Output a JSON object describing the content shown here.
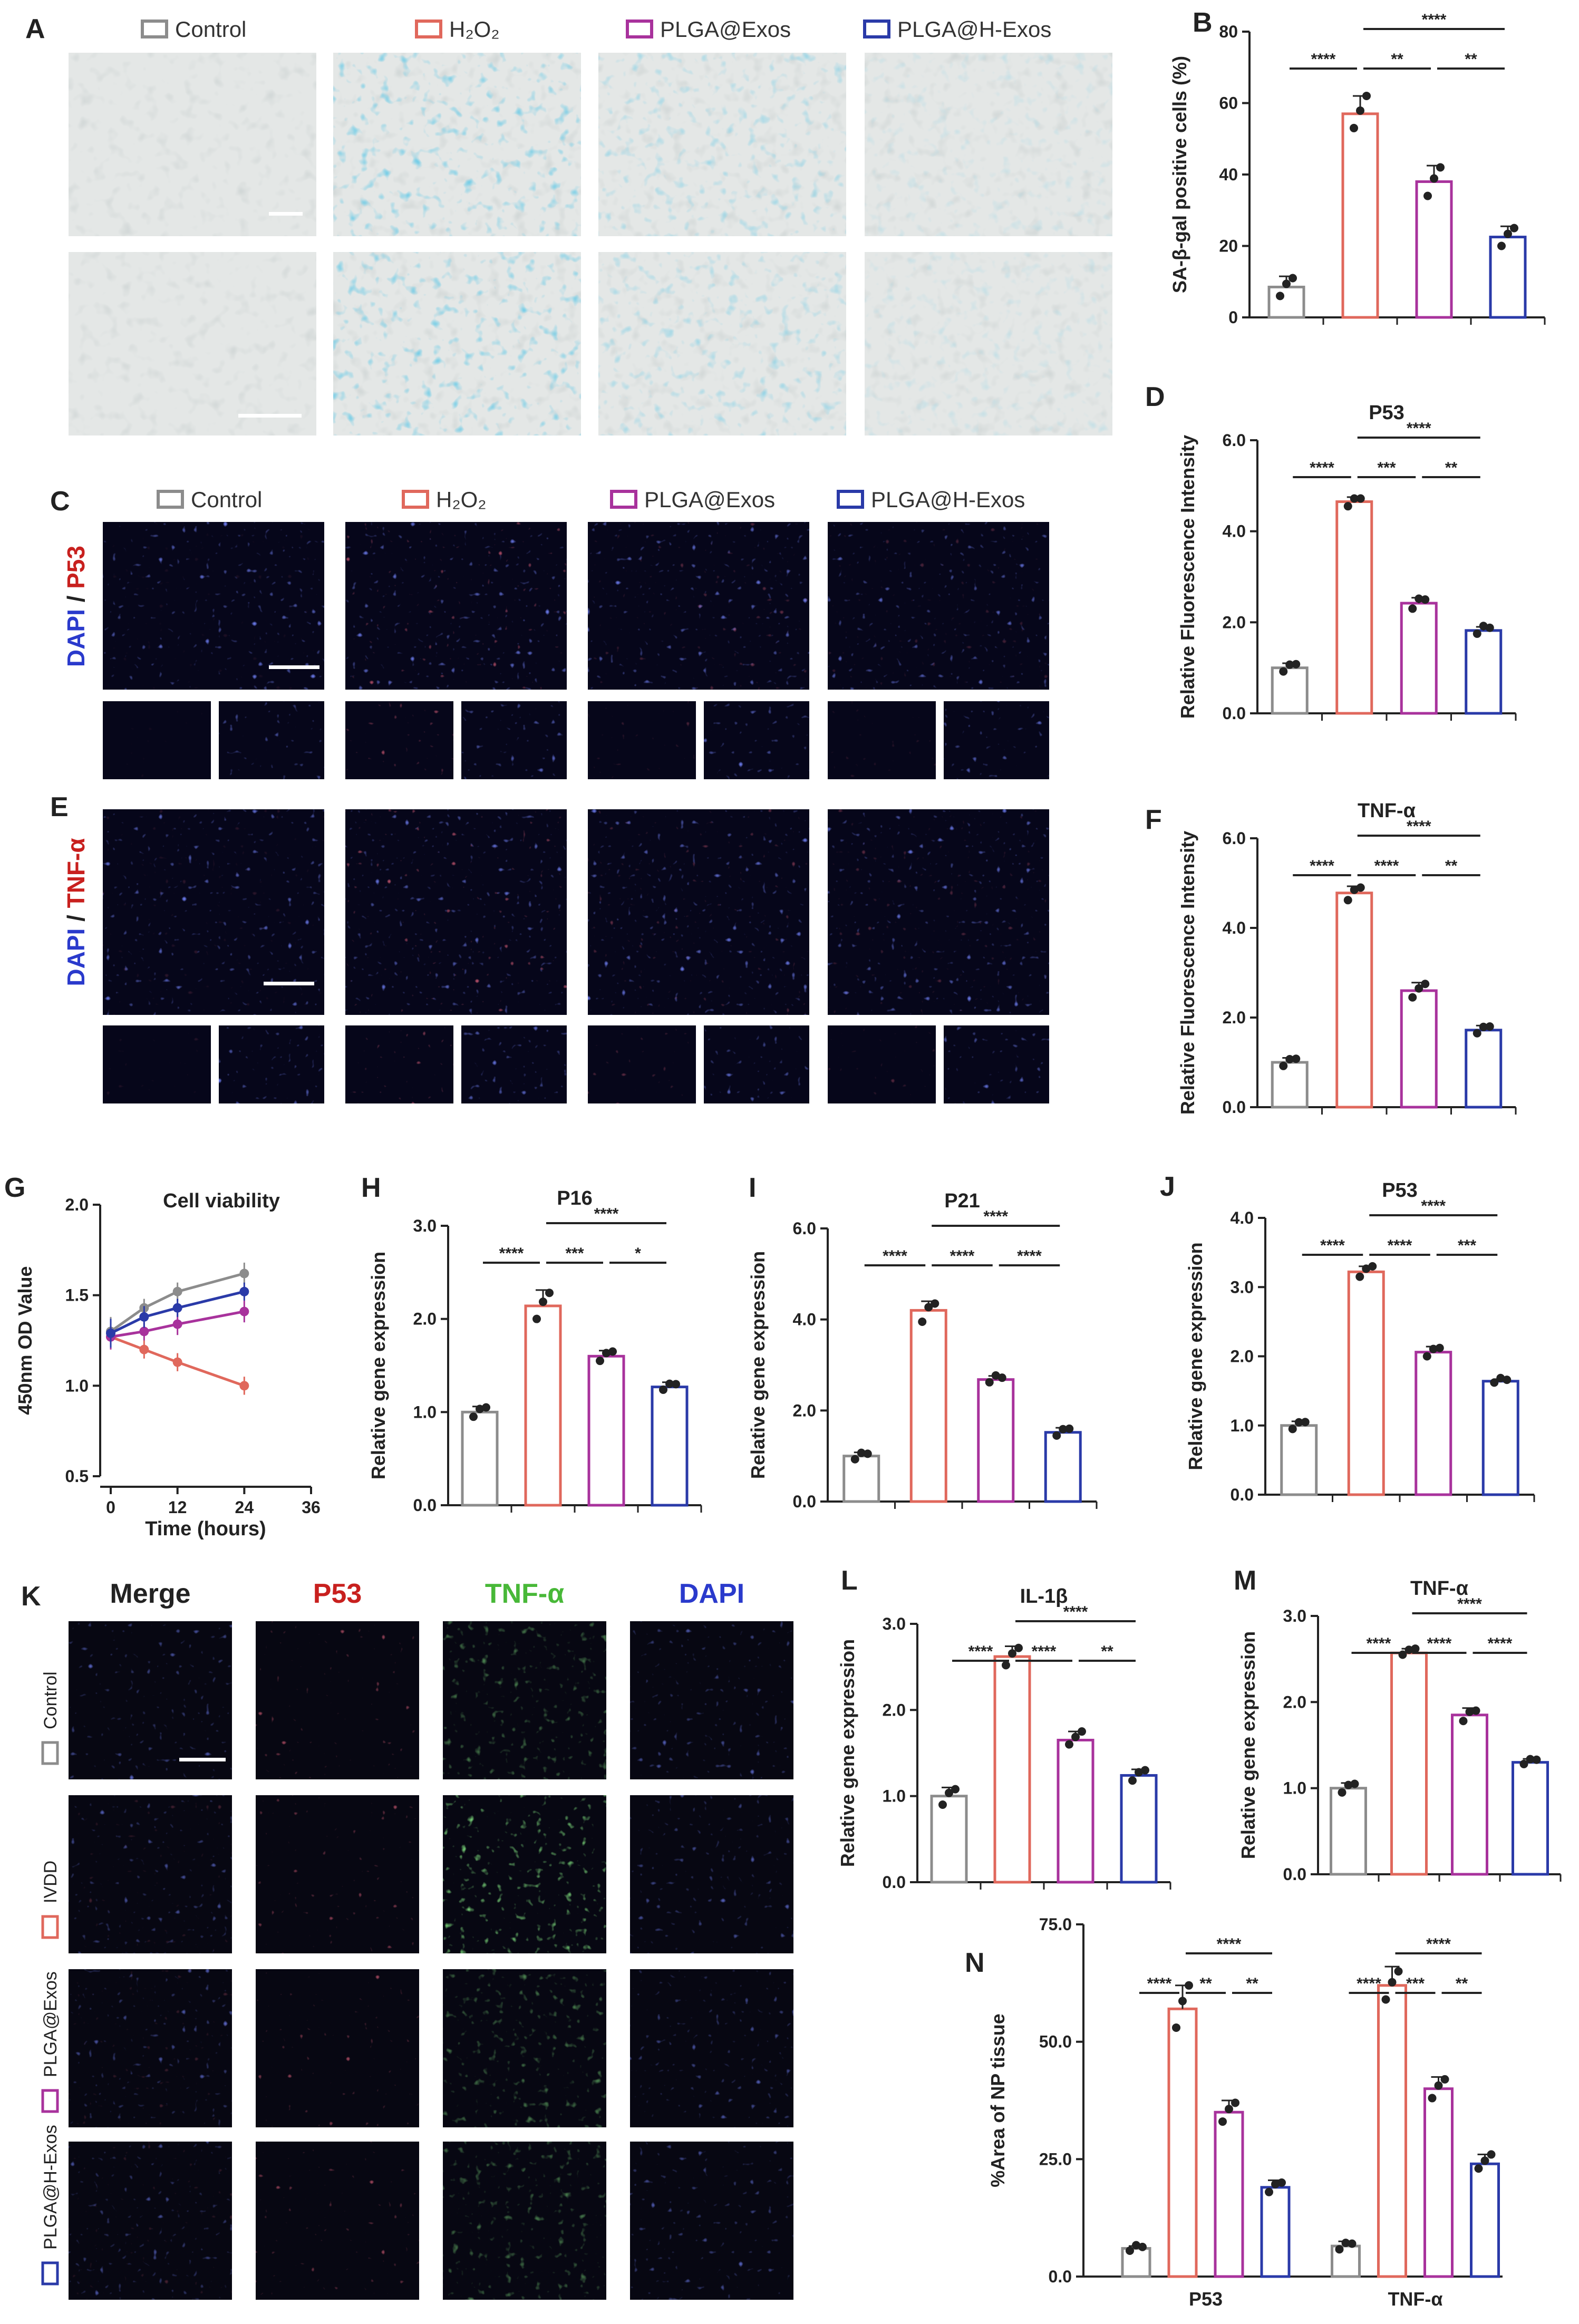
{
  "colors": {
    "Control": "#8c8c8c",
    "H2O2": "#e0685c",
    "PLGA@Exos": "#a8329c",
    "PLGA@H-Exos": "#2a3aa8",
    "dapi": "#2a3acc",
    "p53_text": "#c8201e",
    "tnf_text": "#48b838"
  },
  "panel_labels": {
    "A": "A",
    "B": "B",
    "C": "C",
    "D": "D",
    "E": "E",
    "F": "F",
    "G": "G",
    "H": "H",
    "I": "I",
    "J": "J",
    "K": "K",
    "L": "L",
    "M": "M",
    "N": "N"
  },
  "legend_A": [
    {
      "name": "Control",
      "color_key": "Control"
    },
    {
      "name": "H₂O₂",
      "color_key": "H2O2"
    },
    {
      "name": "PLGA@Exos",
      "color_key": "PLGA@Exos"
    },
    {
      "name": "PLGA@H-Exos",
      "color_key": "PLGA@H-Exos"
    }
  ],
  "legend_C": [
    {
      "name": "Control",
      "color_key": "Control"
    },
    {
      "name": "H₂O₂",
      "color_key": "H2O2"
    },
    {
      "name": "PLGA@Exos",
      "color_key": "PLGA@Exos"
    },
    {
      "name": "PLGA@H-Exos",
      "color_key": "PLGA@H-Exos"
    }
  ],
  "side_labels": {
    "C": {
      "dapi": "DAPI",
      "slash": " / ",
      "marker": "P53"
    },
    "E": {
      "dapi": "DAPI",
      "slash": " / ",
      "marker": "TNF-α"
    }
  },
  "k_headers": [
    "Merge",
    "P53",
    "TNF-α",
    "DAPI"
  ],
  "k_rows": [
    "Control",
    "IVDD",
    "PLGA@Exos",
    "PLGA@H-Exos"
  ],
  "chart_data": [
    {
      "id": "B",
      "type": "bar",
      "title": "",
      "xlabel": "",
      "ylabel": "SA-β-gal positive cells (%)",
      "ylim": [
        0,
        80
      ],
      "yticks": [
        "0",
        "20",
        "40",
        "60",
        "80"
      ],
      "categories": [
        "Control",
        "H2O2",
        "PLGA@Exos",
        "PLGA@H-Exos"
      ],
      "values": [
        8.5,
        57,
        38,
        22.5
      ],
      "errors": [
        3,
        5,
        4.5,
        3
      ],
      "points": [
        [
          6,
          8.5,
          11
        ],
        [
          53,
          57,
          62
        ],
        [
          34,
          38,
          42
        ],
        [
          20,
          22.5,
          25
        ]
      ],
      "sig": [
        {
          "a": 0,
          "b": 1,
          "t": "****",
          "lvl": 1
        },
        {
          "a": 1,
          "b": 2,
          "t": "**",
          "lvl": 1
        },
        {
          "a": 2,
          "b": 3,
          "t": "**",
          "lvl": 1
        },
        {
          "a": 1,
          "b": 3,
          "t": "****",
          "lvl": 2
        }
      ]
    },
    {
      "id": "D",
      "type": "bar",
      "title": "P53",
      "xlabel": "",
      "ylabel": "Relative Fluorescence Intensity",
      "ylim": [
        0,
        6
      ],
      "yticks": [
        "0.0",
        "2.0",
        "4.0",
        "6.0"
      ],
      "categories": [
        "Control",
        "H2O2",
        "PLGA@Exos",
        "PLGA@H-Exos"
      ],
      "values": [
        1.0,
        4.65,
        2.42,
        1.82
      ],
      "errors": [
        0.1,
        0.1,
        0.12,
        0.08
      ],
      "points": [
        [
          0.92,
          1.0,
          1.08
        ],
        [
          4.55,
          4.65,
          4.72
        ],
        [
          2.3,
          2.45,
          2.5
        ],
        [
          1.75,
          1.85,
          1.88
        ]
      ],
      "sig": [
        {
          "a": 0,
          "b": 1,
          "t": "****",
          "lvl": 1
        },
        {
          "a": 1,
          "b": 2,
          "t": "***",
          "lvl": 1
        },
        {
          "a": 2,
          "b": 3,
          "t": "**",
          "lvl": 1
        },
        {
          "a": 1,
          "b": 3,
          "t": "****",
          "lvl": 2
        }
      ]
    },
    {
      "id": "F",
      "type": "bar",
      "title": "TNF-α",
      "xlabel": "",
      "ylabel": "Relative Fluorescence Intensity",
      "ylim": [
        0,
        6
      ],
      "yticks": [
        "0.0",
        "2.0",
        "4.0",
        "6.0"
      ],
      "categories": [
        "Control",
        "H2O2",
        "PLGA@Exos",
        "PLGA@H-Exos"
      ],
      "values": [
        1.0,
        4.78,
        2.6,
        1.72
      ],
      "errors": [
        0.1,
        0.15,
        0.18,
        0.1
      ],
      "points": [
        [
          0.92,
          1.0,
          1.08
        ],
        [
          4.62,
          4.78,
          4.9
        ],
        [
          2.45,
          2.58,
          2.75
        ],
        [
          1.65,
          1.72,
          1.8
        ]
      ],
      "sig": [
        {
          "a": 0,
          "b": 1,
          "t": "****",
          "lvl": 1
        },
        {
          "a": 1,
          "b": 2,
          "t": "****",
          "lvl": 1
        },
        {
          "a": 2,
          "b": 3,
          "t": "**",
          "lvl": 1
        },
        {
          "a": 1,
          "b": 3,
          "t": "****",
          "lvl": 2
        }
      ]
    },
    {
      "id": "G",
      "type": "line",
      "title": "Cell viability",
      "xlabel": "Time (hours)",
      "ylabel": "450nm OD Value",
      "xlim": [
        0,
        36
      ],
      "xticks": [
        "0",
        "12",
        "24",
        "36"
      ],
      "ylim": [
        0.5,
        2.0
      ],
      "yticks": [
        "0.5",
        "1.0",
        "1.5",
        "2.0"
      ],
      "x": [
        0,
        6,
        12,
        24
      ],
      "series": [
        {
          "name": "Control",
          "values": [
            1.3,
            1.43,
            1.52,
            1.62
          ],
          "errors": [
            0.08,
            0.05,
            0.05,
            0.06
          ]
        },
        {
          "name": "H2O2",
          "values": [
            1.27,
            1.2,
            1.13,
            1.0
          ],
          "errors": [
            0.07,
            0.05,
            0.05,
            0.05
          ]
        },
        {
          "name": "PLGA@Exos",
          "values": [
            1.27,
            1.3,
            1.34,
            1.41
          ],
          "errors": [
            0.07,
            0.05,
            0.06,
            0.06
          ]
        },
        {
          "name": "PLGA@H-Exos",
          "values": [
            1.29,
            1.38,
            1.43,
            1.52
          ],
          "errors": [
            0.08,
            0.06,
            0.05,
            0.05
          ]
        }
      ]
    },
    {
      "id": "H",
      "type": "bar",
      "title": "P16",
      "xlabel": "",
      "ylabel": "Relative gene expression",
      "ylim": [
        0,
        3
      ],
      "yticks": [
        "0.0",
        "1.0",
        "2.0",
        "3.0"
      ],
      "categories": [
        "Control",
        "H2O2",
        "PLGA@Exos",
        "PLGA@H-Exos"
      ],
      "values": [
        1.0,
        2.14,
        1.6,
        1.27
      ],
      "errors": [
        0.06,
        0.17,
        0.06,
        0.05
      ],
      "points": [
        [
          0.95,
          1.0,
          1.05
        ],
        [
          2.0,
          2.15,
          2.28
        ],
        [
          1.55,
          1.6,
          1.65
        ],
        [
          1.24,
          1.27,
          1.3
        ]
      ],
      "sig": [
        {
          "a": 0,
          "b": 1,
          "t": "****",
          "lvl": 1
        },
        {
          "a": 1,
          "b": 2,
          "t": "***",
          "lvl": 1
        },
        {
          "a": 2,
          "b": 3,
          "t": "*",
          "lvl": 1
        },
        {
          "a": 1,
          "b": 3,
          "t": "****",
          "lvl": 2
        }
      ]
    },
    {
      "id": "I",
      "type": "bar",
      "title": "P21",
      "xlabel": "",
      "ylabel": "Relative gene expression",
      "ylim": [
        0,
        6
      ],
      "yticks": [
        "0.0",
        "2.0",
        "4.0",
        "6.0"
      ],
      "categories": [
        "Control",
        "H2O2",
        "PLGA@Exos",
        "PLGA@H-Exos"
      ],
      "values": [
        1.0,
        4.2,
        2.68,
        1.52
      ],
      "errors": [
        0.08,
        0.2,
        0.08,
        0.1
      ],
      "points": [
        [
          0.93,
          1.0,
          1.05
        ],
        [
          3.95,
          4.2,
          4.35
        ],
        [
          2.62,
          2.7,
          2.72
        ],
        [
          1.45,
          1.52,
          1.6
        ]
      ],
      "sig": [
        {
          "a": 0,
          "b": 1,
          "t": "****",
          "lvl": 1
        },
        {
          "a": 1,
          "b": 2,
          "t": "****",
          "lvl": 1
        },
        {
          "a": 2,
          "b": 3,
          "t": "****",
          "lvl": 1
        },
        {
          "a": 1,
          "b": 3,
          "t": "****",
          "lvl": 2
        }
      ]
    },
    {
      "id": "J",
      "type": "bar",
      "title": "P53",
      "xlabel": "",
      "ylabel": "Relative gene expression",
      "ylim": [
        0,
        4
      ],
      "yticks": [
        "0.0",
        "1.0",
        "2.0",
        "3.0",
        "4.0"
      ],
      "categories": [
        "Control",
        "H2O2",
        "PLGA@Exos",
        "PLGA@H-Exos"
      ],
      "values": [
        1.0,
        3.22,
        2.06,
        1.64
      ],
      "errors": [
        0.06,
        0.08,
        0.08,
        0.03
      ],
      "points": [
        [
          0.95,
          1.0,
          1.05
        ],
        [
          3.15,
          3.22,
          3.3
        ],
        [
          2.0,
          2.06,
          2.12
        ],
        [
          1.62,
          1.64,
          1.66
        ]
      ],
      "sig": [
        {
          "a": 0,
          "b": 1,
          "t": "****",
          "lvl": 1
        },
        {
          "a": 1,
          "b": 2,
          "t": "****",
          "lvl": 1
        },
        {
          "a": 2,
          "b": 3,
          "t": "***",
          "lvl": 1
        },
        {
          "a": 1,
          "b": 3,
          "t": "****",
          "lvl": 2
        }
      ]
    },
    {
      "id": "L",
      "type": "bar",
      "title": "IL-1β",
      "xlabel": "",
      "ylabel": "Relative gene expression",
      "ylim": [
        0,
        3
      ],
      "yticks": [
        "0.0",
        "1.0",
        "2.0",
        "3.0"
      ],
      "categories": [
        "Control",
        "H2O2",
        "PLGA@Exos",
        "PLGA@H-Exos"
      ],
      "values": [
        1.0,
        2.62,
        1.65,
        1.24
      ],
      "errors": [
        0.1,
        0.12,
        0.1,
        0.07
      ],
      "points": [
        [
          0.9,
          1.0,
          1.08
        ],
        [
          2.52,
          2.62,
          2.72
        ],
        [
          1.6,
          1.65,
          1.75
        ],
        [
          1.18,
          1.24,
          1.3
        ]
      ],
      "sig": [
        {
          "a": 0,
          "b": 1,
          "t": "****",
          "lvl": 1
        },
        {
          "a": 1,
          "b": 2,
          "t": "****",
          "lvl": 1
        },
        {
          "a": 2,
          "b": 3,
          "t": "**",
          "lvl": 1
        },
        {
          "a": 1,
          "b": 3,
          "t": "****",
          "lvl": 2
        }
      ]
    },
    {
      "id": "M",
      "type": "bar",
      "title": "TNF-α",
      "xlabel": "",
      "ylabel": "Relative gene expression",
      "ylim": [
        0,
        3
      ],
      "yticks": [
        "0.0",
        "1.0",
        "2.0",
        "3.0"
      ],
      "categories": [
        "Control",
        "H2O2",
        "PLGA@Exos",
        "PLGA@H-Exos"
      ],
      "values": [
        1.0,
        2.57,
        1.85,
        1.3
      ],
      "errors": [
        0.06,
        0.05,
        0.08,
        0.04
      ],
      "points": [
        [
          0.95,
          1.0,
          1.05
        ],
        [
          2.55,
          2.57,
          2.62
        ],
        [
          1.78,
          1.85,
          1.9
        ],
        [
          1.28,
          1.3,
          1.33
        ]
      ],
      "sig": [
        {
          "a": 0,
          "b": 1,
          "t": "****",
          "lvl": 1
        },
        {
          "a": 1,
          "b": 2,
          "t": "****",
          "lvl": 1
        },
        {
          "a": 2,
          "b": 3,
          "t": "****",
          "lvl": 1
        },
        {
          "a": 1,
          "b": 3,
          "t": "****",
          "lvl": 2
        }
      ]
    },
    {
      "id": "N",
      "type": "bar",
      "title": "",
      "xlabel": "",
      "ylabel": "%Area of NP tissue",
      "ylim": [
        0,
        75
      ],
      "yticks": [
        "0.0",
        "25.0",
        "50.0",
        "75.0"
      ],
      "groups": [
        "P53",
        "TNF-α"
      ],
      "series": [
        {
          "name": "Control",
          "values": [
            6,
            6.5
          ],
          "errors": [
            0.5,
            1
          ],
          "points": [
            [
              5.5,
              6,
              6.3
            ],
            [
              5.8,
              6.5,
              7
            ]
          ]
        },
        {
          "name": "H2O2",
          "values": [
            57,
            62
          ],
          "errors": [
            5,
            4
          ],
          "points": [
            [
              53,
              58,
              62
            ],
            [
              59,
              62,
              65
            ]
          ]
        },
        {
          "name": "PLGA@Exos",
          "values": [
            35,
            40
          ],
          "errors": [
            2.5,
            2.5
          ],
          "points": [
            [
              33,
              35,
              37
            ],
            [
              38,
              40,
              42
            ]
          ]
        },
        {
          "name": "PLGA@H-Exos",
          "values": [
            19,
            24
          ],
          "errors": [
            1.5,
            2
          ],
          "points": [
            [
              18,
              19,
              20
            ],
            [
              23,
              24,
              26
            ]
          ]
        }
      ],
      "sig": [
        {
          "g": 0,
          "a": 0,
          "b": 1,
          "t": "****",
          "lvl": 1
        },
        {
          "g": 0,
          "a": 1,
          "b": 2,
          "t": "**",
          "lvl": 1
        },
        {
          "g": 0,
          "a": 2,
          "b": 3,
          "t": "**",
          "lvl": 1
        },
        {
          "g": 0,
          "a": 1,
          "b": 3,
          "t": "****",
          "lvl": 2
        },
        {
          "g": 1,
          "a": 0,
          "b": 1,
          "t": "****",
          "lvl": 1
        },
        {
          "g": 1,
          "a": 1,
          "b": 2,
          "t": "***",
          "lvl": 1
        },
        {
          "g": 1,
          "a": 2,
          "b": 3,
          "t": "**",
          "lvl": 1
        },
        {
          "g": 1,
          "a": 1,
          "b": 3,
          "t": "****",
          "lvl": 2
        }
      ]
    }
  ]
}
